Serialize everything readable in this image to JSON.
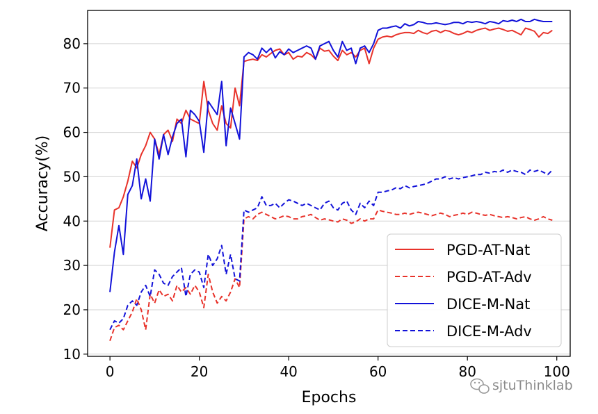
{
  "chart_data": {
    "type": "line",
    "xlabel": "Epochs",
    "ylabel": "Accuracy(%)",
    "xlim": [
      -5,
      103
    ],
    "ylim": [
      9.5,
      87.5
    ],
    "xticks": [
      0,
      20,
      40,
      60,
      80,
      100
    ],
    "yticks": [
      10,
      20,
      30,
      40,
      50,
      60,
      70,
      80
    ],
    "xtick_labels": [
      "0",
      "20",
      "40",
      "60",
      "80",
      "100"
    ],
    "ytick_labels": [
      "10",
      "20",
      "30",
      "40",
      "50",
      "60",
      "70",
      "80"
    ],
    "grid": "horizontal",
    "legend_position": "bottom-right",
    "x": [
      0,
      1,
      2,
      3,
      4,
      5,
      6,
      7,
      8,
      9,
      10,
      11,
      12,
      13,
      14,
      15,
      16,
      17,
      18,
      19,
      20,
      21,
      22,
      23,
      24,
      25,
      26,
      27,
      28,
      29,
      30,
      31,
      32,
      33,
      34,
      35,
      36,
      37,
      38,
      39,
      40,
      41,
      42,
      43,
      44,
      45,
      46,
      47,
      48,
      49,
      50,
      51,
      52,
      53,
      54,
      55,
      56,
      57,
      58,
      59,
      60,
      61,
      62,
      63,
      64,
      65,
      66,
      67,
      68,
      69,
      70,
      71,
      72,
      73,
      74,
      75,
      76,
      77,
      78,
      79,
      80,
      81,
      82,
      83,
      84,
      85,
      86,
      87,
      88,
      89,
      90,
      91,
      92,
      93,
      94,
      95,
      96,
      97,
      98,
      99
    ],
    "series": [
      {
        "name": "PGD-AT-Nat",
        "color": "#e8322a",
        "style": "solid",
        "values": [
          34,
          42.5,
          43,
          45.5,
          49,
          53.5,
          52,
          55,
          57,
          60,
          58.5,
          55,
          59.5,
          60.5,
          58,
          63,
          62,
          65,
          63,
          62.5,
          62,
          71.5,
          65,
          62,
          60.5,
          66,
          62,
          61,
          70,
          66,
          76,
          76.3,
          76.5,
          76.2,
          77.5,
          77,
          77.8,
          78.5,
          78.8,
          77.5,
          78,
          76.5,
          77.2,
          77,
          78,
          77.5,
          76.5,
          79,
          78.3,
          78.5,
          77.2,
          76.2,
          78.5,
          77.5,
          78,
          77,
          78.5,
          79,
          75.5,
          79,
          81,
          81.5,
          81.7,
          81.5,
          82,
          82.3,
          82.5,
          82.5,
          82.3,
          83,
          82.5,
          82.2,
          82.8,
          83,
          82.5,
          83,
          82.8,
          82.3,
          82,
          82.3,
          82.8,
          82.5,
          83,
          83.3,
          83.5,
          83,
          83.3,
          83.5,
          83.2,
          82.8,
          83,
          82.5,
          82,
          83.5,
          83.2,
          82.8,
          81.5,
          82.5,
          82.3,
          83
        ]
      },
      {
        "name": "PGD-AT-Adv",
        "color": "#e8322a",
        "style": "dashed",
        "values": [
          13,
          16,
          16.5,
          15.5,
          17.5,
          19.5,
          22.5,
          20,
          15.5,
          23.5,
          21.5,
          24.5,
          23,
          23.5,
          22,
          25.5,
          24,
          25,
          23.5,
          25.5,
          24,
          20.5,
          28,
          24,
          21.5,
          23,
          22,
          24,
          27,
          25,
          40.5,
          41,
          40.5,
          41.5,
          42,
          41.5,
          41,
          40.5,
          40.8,
          41.2,
          41,
          40.5,
          40.5,
          41,
          41.2,
          41.5,
          40.8,
          40.2,
          40.5,
          40.3,
          40,
          39.8,
          40.5,
          40.2,
          39.5,
          39.8,
          40.5,
          40,
          40.5,
          40.5,
          42.5,
          42.2,
          42,
          41.8,
          41.5,
          41.5,
          41.8,
          41.5,
          41.8,
          42,
          41.8,
          41.5,
          41.2,
          41.5,
          41.8,
          41.5,
          41,
          41.3,
          41.5,
          41.8,
          41.5,
          42,
          41.8,
          41.5,
          41.3,
          41.5,
          41.2,
          41,
          40.8,
          41,
          40.8,
          40.5,
          40.8,
          41,
          40.5,
          40.2,
          40.5,
          41,
          40.5,
          40.2
        ]
      },
      {
        "name": "DICE-M-Nat",
        "color": "#1212d9",
        "style": "solid",
        "values": [
          24,
          33,
          39,
          32.5,
          46,
          48,
          54,
          45,
          49.5,
          44.5,
          58.5,
          54,
          59.5,
          55,
          59,
          62,
          63,
          54.5,
          65,
          64,
          62.5,
          55.5,
          67,
          65.5,
          64,
          71.5,
          57,
          65.5,
          62,
          58.5,
          77,
          78,
          77.5,
          76.5,
          79,
          78,
          79,
          76.8,
          78.2,
          77.5,
          78.8,
          78,
          78.5,
          79,
          79.5,
          79,
          76.5,
          79.5,
          80,
          80.5,
          78.5,
          77,
          80.5,
          78.5,
          79,
          75.5,
          79,
          79.5,
          78,
          80,
          83,
          83.5,
          83.5,
          83.8,
          84,
          83.5,
          84.5,
          84,
          84.3,
          85,
          84.8,
          84.5,
          84.5,
          84.7,
          84.5,
          84.3,
          84.5,
          84.8,
          84.8,
          84.5,
          85,
          84.8,
          85,
          84.8,
          84.5,
          85,
          84.8,
          84.5,
          85.2,
          85,
          85.3,
          85,
          85.5,
          85,
          85,
          85.5,
          85.2,
          85,
          85,
          85
        ]
      },
      {
        "name": "DICE-M-Adv",
        "color": "#1212d9",
        "style": "dashed",
        "values": [
          15.5,
          17.5,
          17,
          18,
          21,
          22,
          21,
          24,
          25.5,
          23,
          29,
          28,
          26,
          25.5,
          27.5,
          28.5,
          29.5,
          23,
          28,
          29,
          28.5,
          25,
          32.5,
          30,
          31.5,
          34.5,
          28,
          32.5,
          27,
          26.5,
          42.5,
          42,
          42.5,
          43,
          45.5,
          43.5,
          43.5,
          44,
          43,
          44,
          44.8,
          44.5,
          44,
          43.5,
          44,
          43.5,
          43,
          42.5,
          44,
          44.5,
          43,
          42.5,
          44,
          44.5,
          42.5,
          41.5,
          44,
          43,
          44.5,
          43.5,
          46.5,
          46.5,
          46.8,
          47,
          47.5,
          47.3,
          48,
          47.5,
          47.8,
          48,
          48.2,
          48.5,
          49,
          49.5,
          49.5,
          50,
          49.5,
          49.8,
          49.5,
          49.8,
          50,
          50.2,
          50.5,
          50.5,
          51,
          50.8,
          51.2,
          51,
          51.5,
          51,
          51.5,
          51.2,
          51,
          50.5,
          51.5,
          51.2,
          51.5,
          51,
          50.5,
          51.5
        ]
      }
    ]
  },
  "watermark": {
    "text": "sjtuThinklab",
    "icon": "wechat-icon"
  }
}
